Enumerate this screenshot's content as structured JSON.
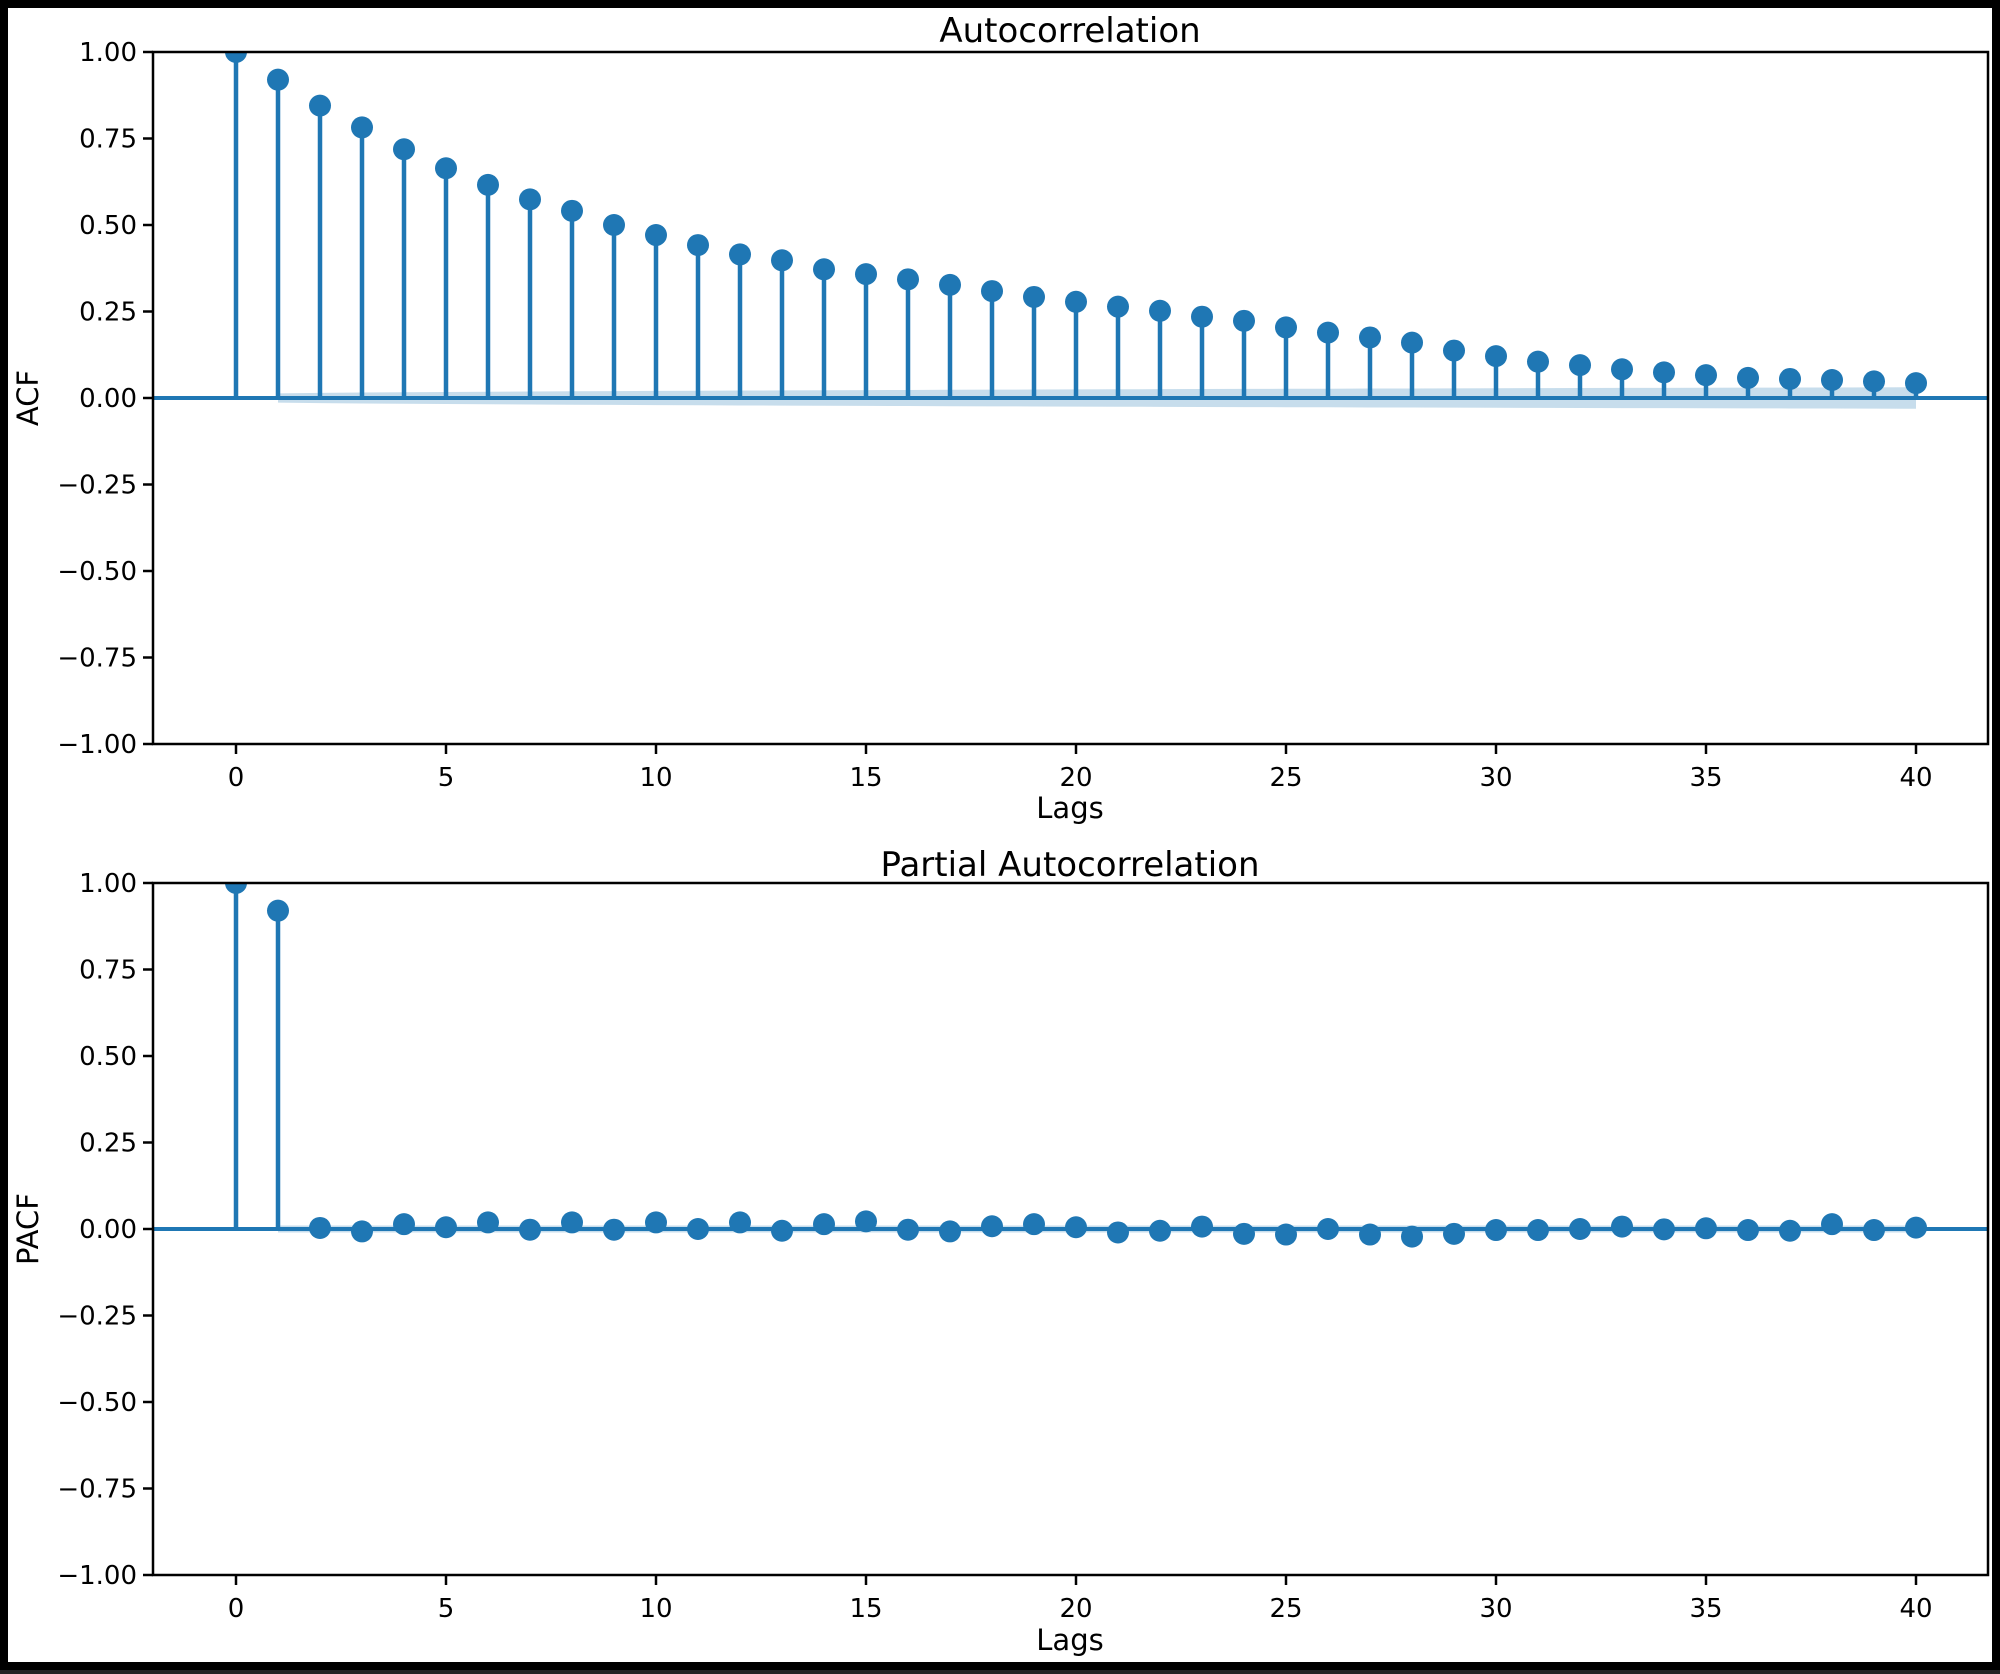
{
  "figure": {
    "background": "#ffffff",
    "frame_color": "#000000",
    "accent_color": "#1f77b4",
    "ci_band_color": "rgba(31,119,180,0.25)",
    "spine_color": "#000000"
  },
  "chart_data": [
    {
      "type": "stem",
      "title": "Autocorrelation",
      "xlabel": "Lags",
      "ylabel": "ACF",
      "ylim": [
        -1.0,
        1.0
      ],
      "xlim": [
        -2.0,
        41.7
      ],
      "grid": false,
      "legend": "none",
      "xtick_values": [
        0,
        5,
        10,
        15,
        20,
        25,
        30,
        35,
        40
      ],
      "xtick_labels": [
        "0",
        "5",
        "10",
        "15",
        "20",
        "25",
        "30",
        "35",
        "40"
      ],
      "ytick_values": [
        1.0,
        0.75,
        0.5,
        0.25,
        0.0,
        -0.25,
        -0.5,
        -0.75,
        -1.0
      ],
      "ytick_labels": [
        "1.00",
        "0.75",
        "0.50",
        "0.25",
        "0.00",
        "−0.25",
        "−0.50",
        "−0.75",
        "−1.00"
      ],
      "lags": [
        0,
        1,
        2,
        3,
        4,
        5,
        6,
        7,
        8,
        9,
        10,
        11,
        12,
        13,
        14,
        15,
        16,
        17,
        18,
        19,
        20,
        21,
        22,
        23,
        24,
        25,
        26,
        27,
        28,
        29,
        30,
        31,
        32,
        33,
        34,
        35,
        36,
        37,
        38,
        39,
        40
      ],
      "values": [
        1.0,
        0.92,
        0.845,
        0.782,
        0.719,
        0.664,
        0.616,
        0.574,
        0.541,
        0.5,
        0.471,
        0.442,
        0.415,
        0.398,
        0.372,
        0.358,
        0.343,
        0.327,
        0.309,
        0.292,
        0.278,
        0.264,
        0.252,
        0.235,
        0.223,
        0.204,
        0.189,
        0.175,
        0.16,
        0.137,
        0.121,
        0.105,
        0.095,
        0.083,
        0.074,
        0.066,
        0.058,
        0.055,
        0.052,
        0.048,
        0.043
      ],
      "ci_lags_start": 1,
      "ci_halfwidth": [
        0.0133,
        0.0147,
        0.0158,
        0.0166,
        0.0174,
        0.0181,
        0.0188,
        0.0194,
        0.02,
        0.0205,
        0.021,
        0.0215,
        0.022,
        0.0224,
        0.0229,
        0.0233,
        0.0237,
        0.0241,
        0.0245,
        0.0248,
        0.0252,
        0.0256,
        0.0259,
        0.0263,
        0.0266,
        0.0269,
        0.0273,
        0.0276,
        0.0279,
        0.0282,
        0.0285,
        0.0288,
        0.0291,
        0.0294,
        0.0296,
        0.0299,
        0.0302,
        0.0305,
        0.0307,
        0.031
      ]
    },
    {
      "type": "stem",
      "title": "Partial Autocorrelation",
      "xlabel": "Lags",
      "ylabel": "PACF",
      "ylim": [
        -1.0,
        1.0
      ],
      "xlim": [
        -2.0,
        41.7
      ],
      "grid": false,
      "legend": "none",
      "xtick_values": [
        0,
        5,
        10,
        15,
        20,
        25,
        30,
        35,
        40
      ],
      "xtick_labels": [
        "0",
        "5",
        "10",
        "15",
        "20",
        "25",
        "30",
        "35",
        "40"
      ],
      "ytick_values": [
        1.0,
        0.75,
        0.5,
        0.25,
        0.0,
        -0.25,
        -0.5,
        -0.75,
        -1.0
      ],
      "ytick_labels": [
        "1.00",
        "0.75",
        "0.50",
        "0.25",
        "0.00",
        "−0.25",
        "−0.50",
        "−0.75",
        "−1.00"
      ],
      "lags": [
        0,
        1,
        2,
        3,
        4,
        5,
        6,
        7,
        8,
        9,
        10,
        11,
        12,
        13,
        14,
        15,
        16,
        17,
        18,
        19,
        20,
        21,
        22,
        23,
        24,
        25,
        26,
        27,
        28,
        29,
        30,
        31,
        32,
        33,
        34,
        35,
        36,
        37,
        38,
        39,
        40
      ],
      "values": [
        1.0,
        0.92,
        0.003,
        -0.007,
        0.014,
        0.005,
        0.019,
        -0.002,
        0.019,
        -0.002,
        0.019,
        0.0,
        0.019,
        -0.005,
        0.014,
        0.022,
        -0.002,
        -0.007,
        0.008,
        0.014,
        0.005,
        -0.01,
        -0.005,
        0.007,
        -0.014,
        -0.016,
        0.0,
        -0.016,
        -0.022,
        -0.014,
        -0.003,
        -0.003,
        0.0,
        0.007,
        -0.001,
        0.002,
        -0.003,
        -0.005,
        0.014,
        -0.003,
        0.004
      ],
      "ci_lags_start": 1,
      "ci_halfwidth": 0.01
    }
  ]
}
